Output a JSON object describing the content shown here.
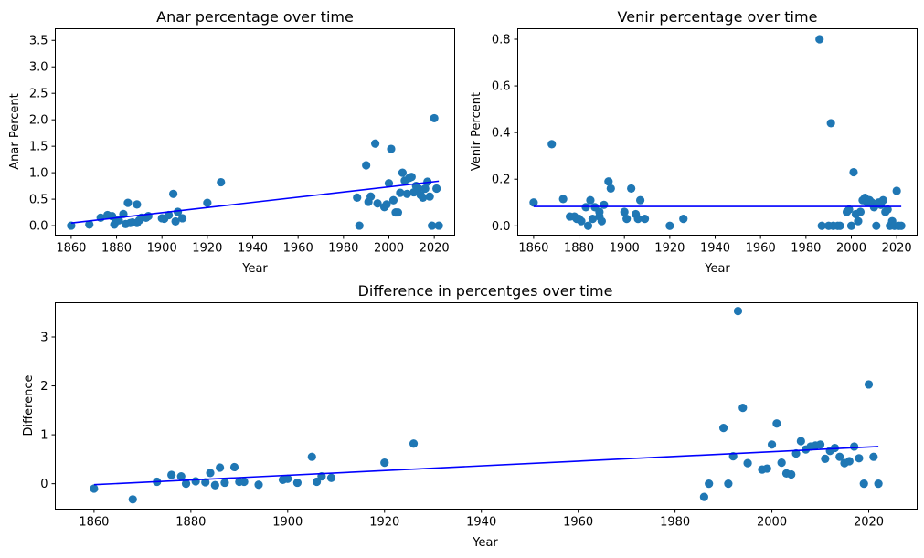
{
  "chart_data": [
    {
      "type": "scatter",
      "title": "Anar percentage over time",
      "xlabel": "Year",
      "ylabel": "Anar Percent",
      "xlim": [
        1853,
        2029
      ],
      "ylim": [
        -0.18,
        3.72
      ],
      "xticks": [
        1860,
        1880,
        1900,
        1920,
        1940,
        1960,
        1980,
        2000,
        2020
      ],
      "yticks": [
        0.0,
        0.5,
        1.0,
        1.5,
        2.0,
        2.5,
        3.0,
        3.5
      ],
      "ytick_labels": [
        "0.0",
        "0.5",
        "1.0",
        "1.5",
        "2.0",
        "2.5",
        "3.0",
        "3.5"
      ],
      "grid": false,
      "point_color": "#1f77b4",
      "line_color": "#0000ff",
      "series": [
        {
          "x": [
            1860,
            1868,
            1873,
            1876,
            1878,
            1879,
            1880,
            1881,
            1883,
            1884,
            1885,
            1886,
            1887,
            1889,
            1889,
            1890,
            1891,
            1893,
            1894,
            1900,
            1901,
            1903,
            1905,
            1906,
            1907,
            1909,
            1920,
            1926,
            1986,
            1987,
            1990,
            1991,
            1992,
            1994,
            1995,
            1998,
            1999,
            2000,
            2001,
            2002,
            2003,
            2004,
            2005,
            2006,
            2007,
            2008,
            2009,
            2010,
            2011,
            2012,
            2013,
            2014,
            2015,
            2016,
            2017,
            2018,
            2019,
            2020,
            2021,
            2022
          ],
          "y": [
            0.0,
            0.02,
            0.15,
            0.2,
            0.18,
            0.02,
            0.1,
            0.1,
            0.22,
            0.03,
            0.43,
            0.05,
            0.06,
            0.4,
            0.05,
            0.1,
            0.15,
            0.15,
            0.18,
            0.14,
            0.13,
            0.2,
            0.6,
            0.08,
            0.26,
            0.14,
            0.43,
            0.82,
            0.53,
            0.0,
            1.14,
            0.45,
            0.55,
            1.55,
            0.42,
            0.35,
            0.4,
            0.8,
            1.45,
            0.48,
            0.25,
            0.25,
            0.62,
            1.0,
            0.85,
            0.6,
            0.9,
            0.92,
            0.63,
            0.75,
            0.7,
            0.58,
            0.53,
            0.7,
            0.83,
            0.55,
            0.0,
            2.03,
            0.7,
            0.0
          ]
        }
      ],
      "trend": {
        "x": [
          1860,
          2022
        ],
        "y": [
          0.05,
          0.84
        ]
      }
    },
    {
      "type": "scatter",
      "title": "Venir percentage over time",
      "xlabel": "Year",
      "ylabel": "Venir Percent",
      "xlim": [
        1853,
        2029
      ],
      "ylim": [
        -0.04,
        0.845
      ],
      "xticks": [
        1860,
        1880,
        1900,
        1920,
        1940,
        1960,
        1980,
        2000,
        2020
      ],
      "yticks": [
        0.0,
        0.2,
        0.4,
        0.6,
        0.8
      ],
      "ytick_labels": [
        "0.0",
        "0.2",
        "0.4",
        "0.6",
        "0.8"
      ],
      "grid": false,
      "point_color": "#1f77b4",
      "line_color": "#0000ff",
      "series": [
        {
          "x": [
            1860,
            1868,
            1873,
            1876,
            1878,
            1879,
            1880,
            1881,
            1883,
            1884,
            1885,
            1886,
            1887,
            1889,
            1889,
            1890,
            1891,
            1893,
            1894,
            1900,
            1901,
            1903,
            1905,
            1906,
            1907,
            1909,
            1920,
            1926,
            1986,
            1987,
            1990,
            1991,
            1992,
            1994,
            1995,
            1998,
            1999,
            2000,
            2001,
            2002,
            2003,
            2004,
            2005,
            2006,
            2007,
            2008,
            2009,
            2010,
            2011,
            2012,
            2013,
            2014,
            2015,
            2016,
            2017,
            2018,
            2019,
            2020,
            2021,
            2022
          ],
          "y": [
            0.1,
            0.35,
            0.115,
            0.04,
            0.04,
            0.03,
            0.03,
            0.02,
            0.08,
            0.0,
            0.11,
            0.03,
            0.08,
            0.06,
            0.04,
            0.02,
            0.09,
            0.19,
            0.16,
            0.06,
            0.03,
            0.16,
            0.05,
            0.03,
            0.11,
            0.03,
            0.0,
            0.03,
            0.8,
            0.0,
            0.0,
            0.44,
            0.0,
            0.0,
            0.0,
            0.06,
            0.07,
            0.0,
            0.23,
            0.05,
            0.02,
            0.06,
            0.11,
            0.12,
            0.1,
            0.11,
            0.1,
            0.08,
            0.0,
            0.1,
            0.09,
            0.11,
            0.06,
            0.07,
            0.0,
            0.02,
            0.0,
            0.15,
            0.0,
            0.0
          ]
        }
      ],
      "trend": {
        "x": [
          1860,
          2022
        ],
        "y": [
          0.083,
          0.083
        ]
      }
    },
    {
      "type": "scatter",
      "title": "Difference in percentges over time",
      "xlabel": "Year",
      "ylabel": "Difference",
      "xlim": [
        1852,
        2030
      ],
      "ylim": [
        -0.52,
        3.7
      ],
      "xticks": [
        1860,
        1880,
        1900,
        1920,
        1940,
        1960,
        1980,
        2000,
        2020
      ],
      "yticks": [
        0,
        1,
        2,
        3
      ],
      "ytick_labels": [
        "0",
        "1",
        "2",
        "3"
      ],
      "grid": false,
      "point_color": "#1f77b4",
      "line_color": "#0000ff",
      "series": [
        {
          "x": [
            1860,
            1868,
            1873,
            1876,
            1878,
            1879,
            1881,
            1883,
            1884,
            1885,
            1886,
            1887,
            1889,
            1890,
            1891,
            1894,
            1899,
            1900,
            1902,
            1905,
            1906,
            1907,
            1909,
            1920,
            1926,
            1986,
            1987,
            1990,
            1991,
            1992,
            1993,
            1994,
            1995,
            1998,
            1999,
            2000,
            2001,
            2002,
            2003,
            2004,
            2005,
            2006,
            2007,
            2008,
            2009,
            2010,
            2011,
            2012,
            2013,
            2014,
            2015,
            2016,
            2017,
            2018,
            2019,
            2020,
            2021,
            2022
          ],
          "y": [
            -0.1,
            -0.32,
            0.04,
            0.18,
            0.15,
            0.0,
            0.05,
            0.03,
            0.22,
            -0.03,
            0.33,
            0.02,
            0.34,
            0.04,
            0.04,
            -0.02,
            0.08,
            0.1,
            0.02,
            0.55,
            0.04,
            0.15,
            0.12,
            0.43,
            0.82,
            -0.27,
            0.0,
            1.14,
            0.0,
            0.56,
            3.53,
            1.55,
            0.42,
            0.29,
            0.31,
            0.8,
            1.23,
            0.43,
            0.21,
            0.19,
            0.62,
            0.87,
            0.7,
            0.76,
            0.78,
            0.8,
            0.51,
            0.67,
            0.73,
            0.55,
            0.42,
            0.46,
            0.76,
            0.52,
            0.0,
            2.03,
            0.55,
            0.0
          ]
        }
      ],
      "trend": {
        "x": [
          1860,
          2022
        ],
        "y": [
          -0.02,
          0.76
        ]
      }
    }
  ]
}
